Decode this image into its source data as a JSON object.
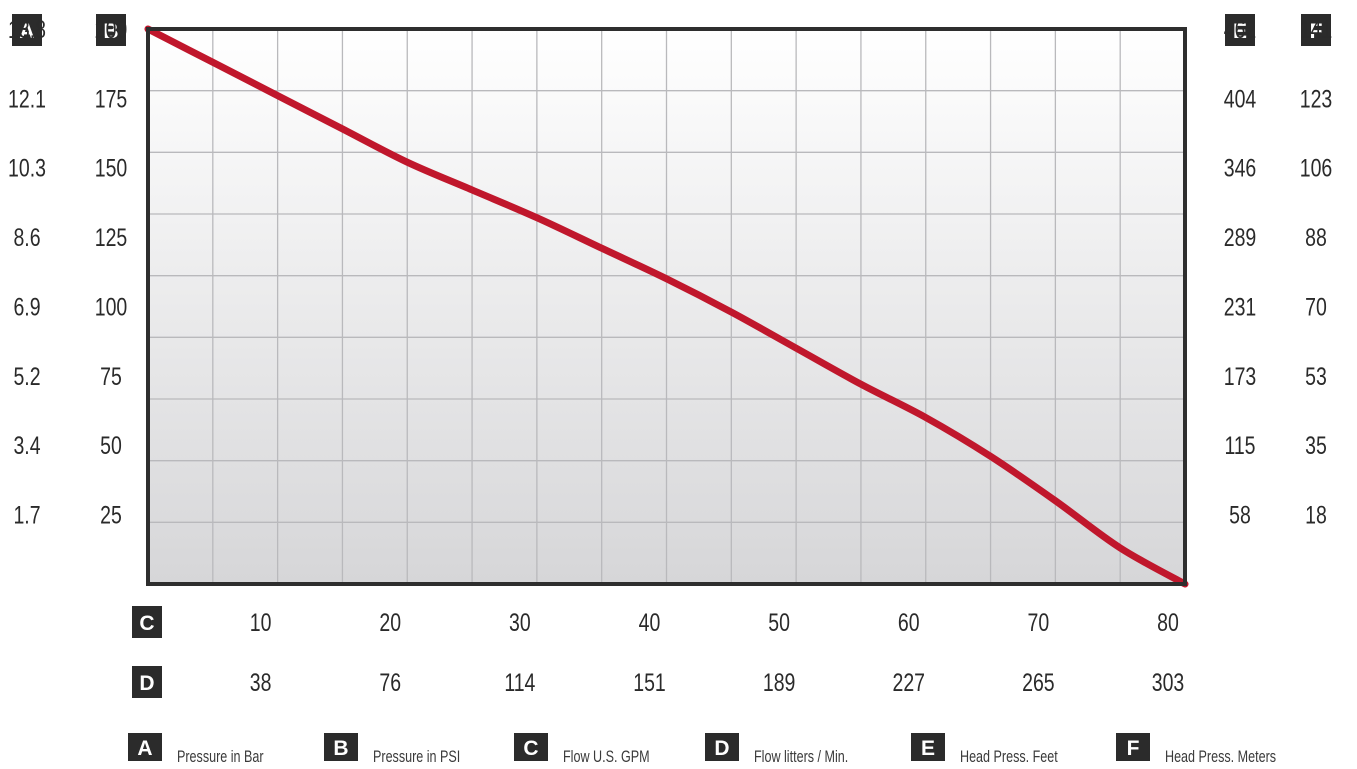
{
  "chart_data": {
    "type": "line",
    "axes": {
      "left_outer": {
        "letter": "A",
        "ticks": [
          "13.8",
          "12.1",
          "10.3",
          "8.6",
          "6.9",
          "5.2",
          "3.4",
          "1.7"
        ]
      },
      "left_inner": {
        "letter": "B",
        "ticks": [
          "200",
          "175",
          "150",
          "125",
          "100",
          "75",
          "50",
          "25"
        ]
      },
      "right_inner": {
        "letter": "E",
        "ticks": [
          "462",
          "404",
          "346",
          "289",
          "231",
          "173",
          "115",
          "58"
        ]
      },
      "right_outer": {
        "letter": "F",
        "ticks": [
          "141",
          "123",
          "106",
          "88",
          "70",
          "53",
          "35",
          "18"
        ]
      },
      "bottom_first": {
        "letter": "C",
        "ticks": [
          "10",
          "20",
          "30",
          "40",
          "50",
          "60",
          "70",
          "80"
        ]
      },
      "bottom_second": {
        "letter": "D",
        "ticks": [
          "38",
          "76",
          "114",
          "151",
          "189",
          "227",
          "265",
          "303"
        ]
      }
    },
    "xlim": [
      0,
      80
    ],
    "ylim": [
      0,
      200
    ],
    "x_ticks": [
      10,
      20,
      30,
      40,
      50,
      60,
      70,
      80
    ],
    "y_ticks": [
      200,
      175,
      150,
      125,
      100,
      75,
      50,
      25
    ],
    "grid": true,
    "series": [
      {
        "color": "#c0172c",
        "x": [
          0,
          5,
          10,
          15,
          20,
          25,
          30,
          35,
          40,
          45,
          50,
          55,
          60,
          65,
          70,
          75,
          80
        ],
        "y": [
          200,
          188,
          176,
          164,
          152,
          142,
          132,
          121,
          110,
          98,
          85,
          72,
          60,
          46,
          30,
          13,
          0
        ]
      }
    ],
    "legend": [
      {
        "letter": "A",
        "label": "Pressure in Bar"
      },
      {
        "letter": "B",
        "label": "Pressure in PSI"
      },
      {
        "letter": "C",
        "label": "Flow U.S. GPM"
      },
      {
        "letter": "D",
        "label": "Flow litters / Min."
      },
      {
        "letter": "E",
        "label": "Head Press. Feet"
      },
      {
        "letter": "F",
        "label": "Head Press. Meters"
      }
    ]
  }
}
